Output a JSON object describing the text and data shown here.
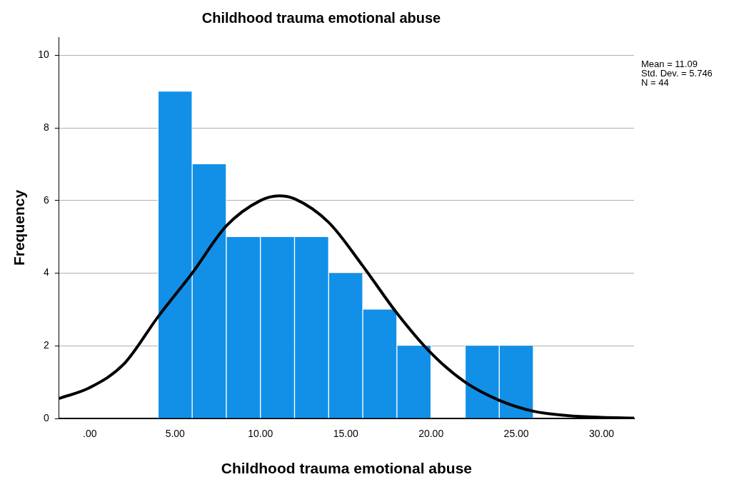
{
  "chart_data": {
    "type": "histogram",
    "title": "Childhood trauma emotional abuse",
    "xlabel": "Childhood trauma emotional abuse",
    "ylabel": "Frequency",
    "bins": [
      4,
      6,
      8,
      10,
      12,
      14,
      16,
      18,
      20,
      22,
      24,
      26
    ],
    "values": [
      9,
      7,
      5,
      5,
      5,
      4,
      3,
      2,
      0,
      2,
      2
    ],
    "color": "#1290e8",
    "series": [
      {
        "type": "line",
        "color": "#000000",
        "x": [
          -1.8,
          0,
          2,
          4,
          6,
          8,
          10,
          11.09,
          12,
          14,
          16,
          18,
          20,
          22,
          24,
          26,
          28,
          30,
          31.9
        ],
        "values": [
          0.55,
          0.85,
          1.5,
          2.8,
          4.0,
          5.3,
          6.0,
          6.13,
          6.05,
          5.4,
          4.2,
          2.9,
          1.8,
          1.0,
          0.5,
          0.2,
          0.08,
          0.03,
          0.01
        ]
      }
    ],
    "marker": "none",
    "line_style": "solid",
    "xlim": [
      -1.8,
      31.9
    ],
    "xticks": [
      {
        "value": 0,
        "label": ".00"
      },
      {
        "value": 5,
        "label": "5.00"
      },
      {
        "value": 10,
        "label": "10.00"
      },
      {
        "value": 15,
        "label": "15.00"
      },
      {
        "value": 20,
        "label": "20.00"
      },
      {
        "value": 25,
        "label": "25.00"
      },
      {
        "value": 30,
        "label": "30.00"
      }
    ],
    "ylim": [
      0,
      10.5
    ],
    "yticks": [
      0,
      2,
      4,
      6,
      8,
      10
    ],
    "grid": "y",
    "legend": false,
    "annotations": [
      "Mean = 11.09",
      "Std. Dev. = 5.746",
      "N = 44"
    ]
  }
}
